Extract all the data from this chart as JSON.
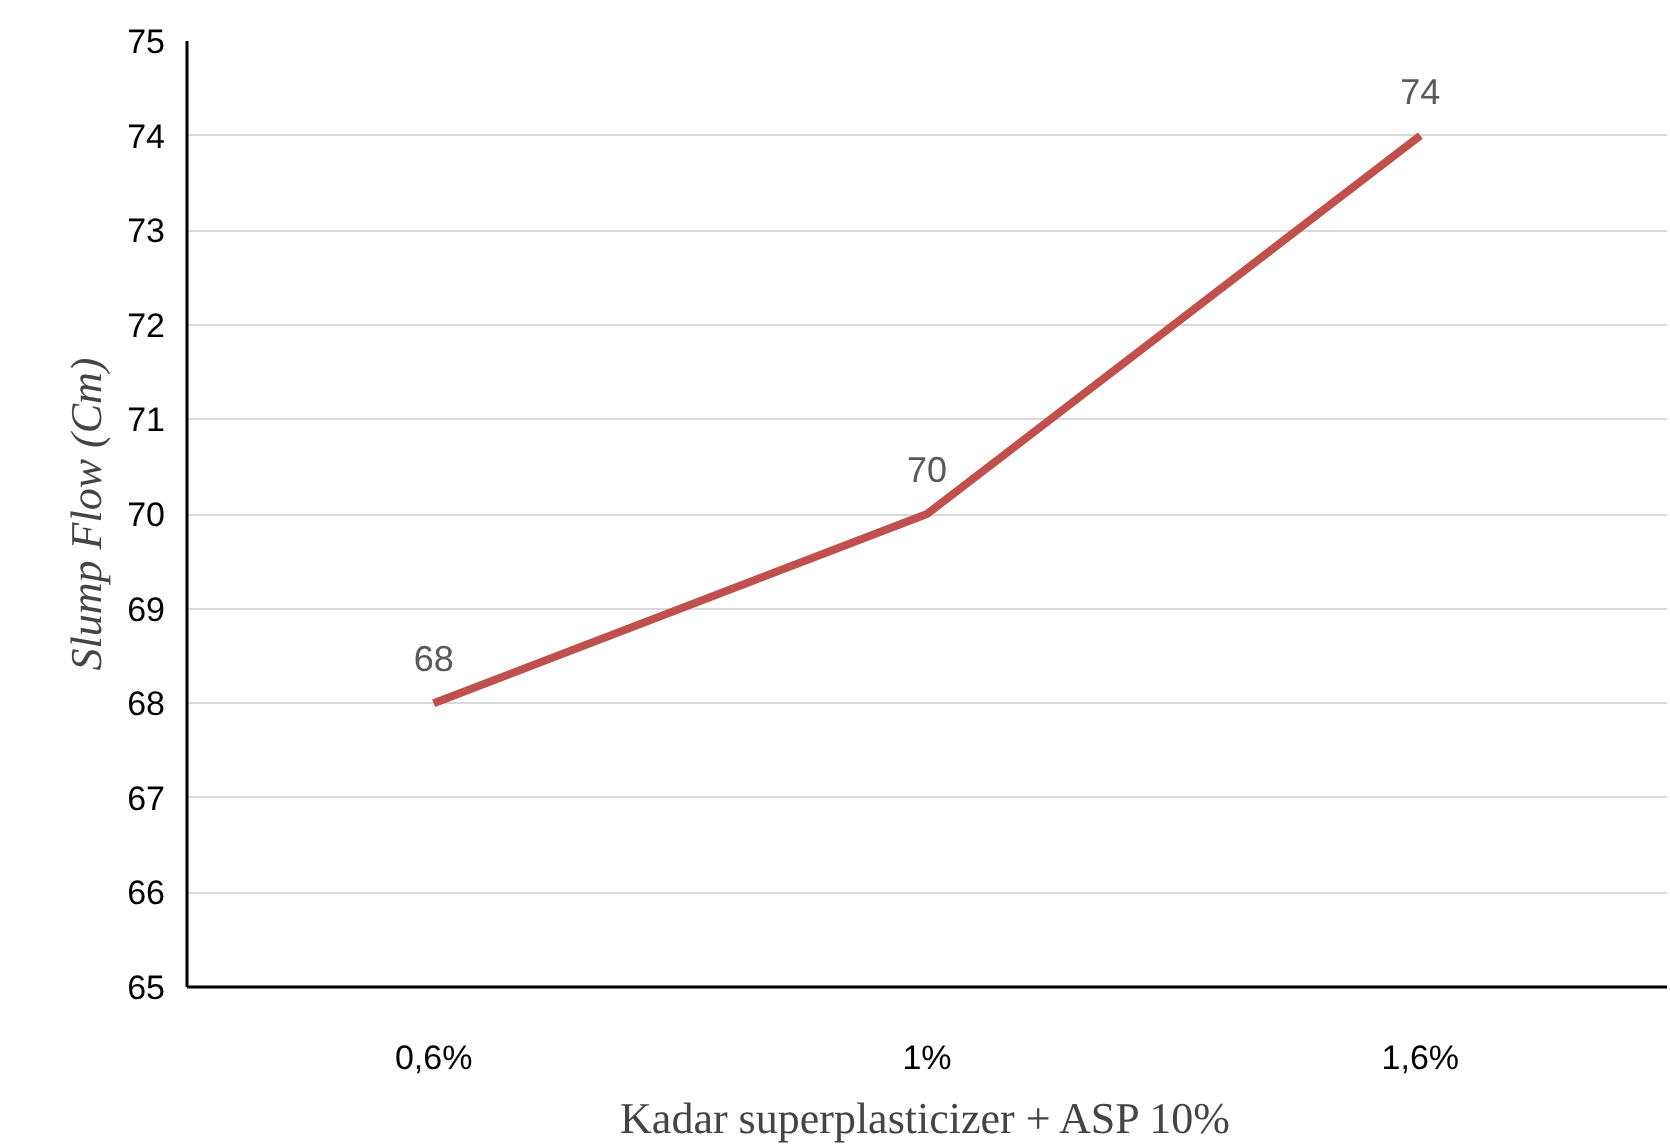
{
  "chart_data": {
    "type": "line",
    "xlabel": "Kadar superplasticizer + ASP 10%",
    "ylabel": "Slump Flow (Cm)",
    "categories": [
      "0,6%",
      "1%",
      "1,6%"
    ],
    "series": [
      {
        "color": "#c0504d",
        "values": [
          68,
          70,
          74
        ]
      }
    ],
    "ylim": [
      65,
      75
    ],
    "yticks": [
      65,
      66,
      67,
      68,
      69,
      70,
      71,
      72,
      73,
      74,
      75
    ],
    "grid": "y",
    "data_labels": true,
    "line_style": "solid"
  }
}
